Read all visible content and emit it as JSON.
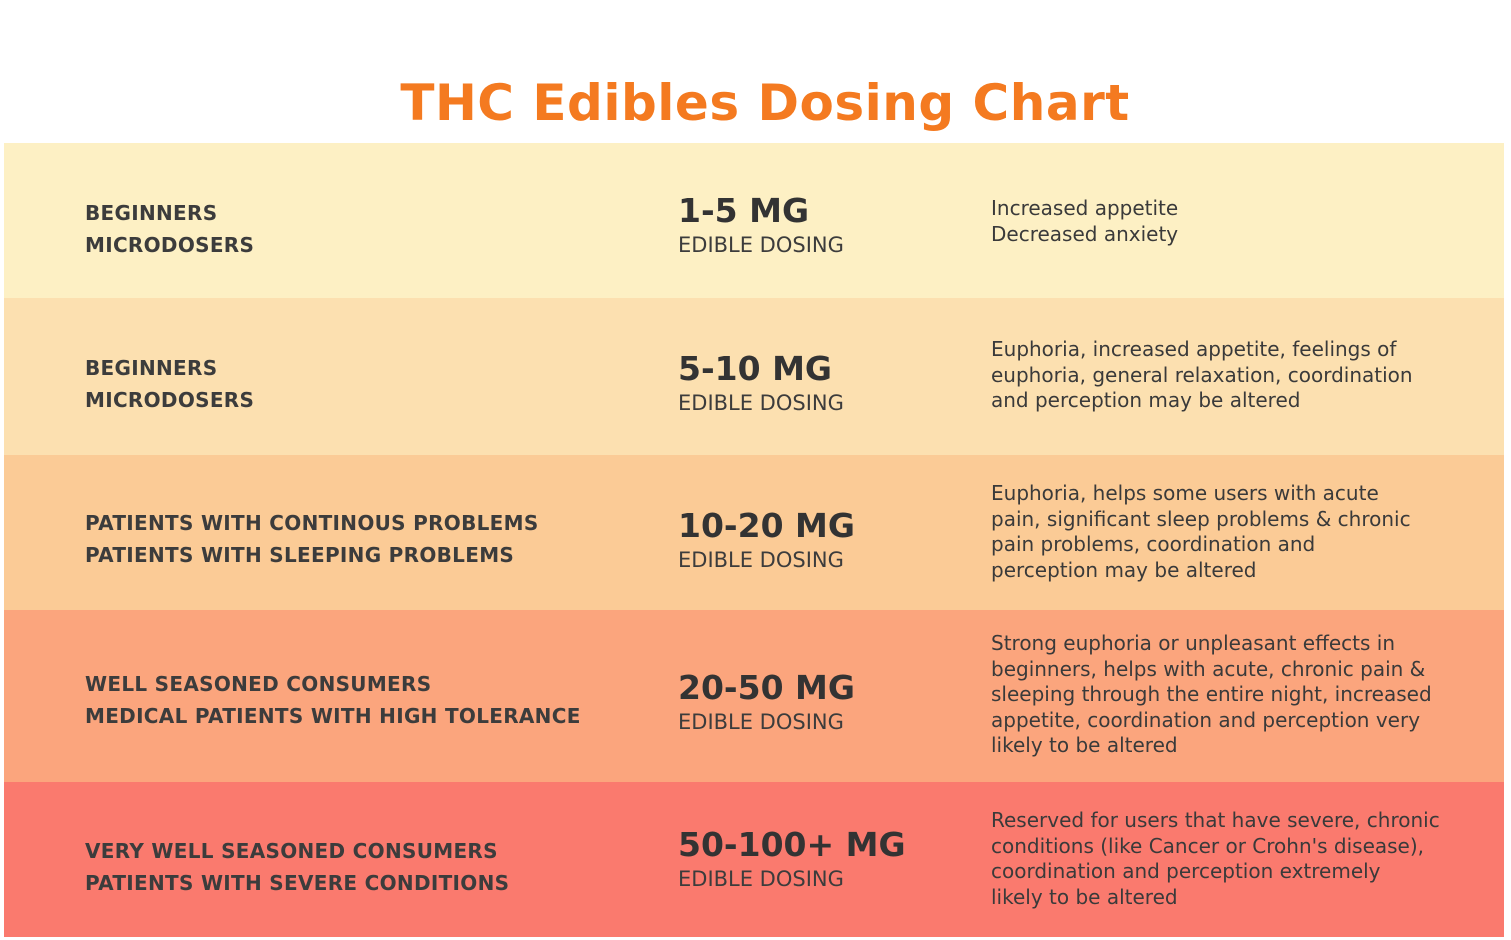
{
  "title": "THC Edibles Dosing Chart",
  "colors": {
    "title": "#f47a20",
    "row_backgrounds": [
      "#fdf0c4",
      "#fce0b0",
      "#fbcb96",
      "#fba57d",
      "#fa7a6e"
    ]
  },
  "rows": [
    {
      "audience": [
        "BEGINNERS",
        "MICRODOSERS"
      ],
      "dose": "1-5 MG",
      "dose_label": "EDIBLE DOSING",
      "effects": [
        "Increased appetite",
        "Decreased anxiety"
      ]
    },
    {
      "audience": [
        "BEGINNERS",
        "MICRODOSERS"
      ],
      "dose": "5-10 MG",
      "dose_label": "EDIBLE DOSING",
      "effects": [
        "Euphoria, increased appetite, feelings of",
        "euphoria, general relaxation, coordination",
        "and perception may be altered"
      ]
    },
    {
      "audience": [
        "PATIENTS WITH CONTINOUS PROBLEMS",
        "PATIENTS WITH SLEEPING PROBLEMS"
      ],
      "dose": "10-20 MG",
      "dose_label": "EDIBLE DOSING",
      "effects": [
        "Euphoria, helps some users with acute",
        "pain, significant sleep problems & chronic",
        "pain problems, coordination and",
        "perception may be altered"
      ]
    },
    {
      "audience": [
        "WELL SEASONED CONSUMERS",
        "MEDICAL PATIENTS WITH HIGH TOLERANCE"
      ],
      "dose": "20-50 MG",
      "dose_label": "EDIBLE DOSING",
      "effects": [
        "Strong euphoria or unpleasant effects in",
        "beginners, helps with acute, chronic pain &",
        "sleeping through the entire night, increased",
        "appetite, coordination and perception very",
        "likely to be altered"
      ]
    },
    {
      "audience": [
        "VERY WELL SEASONED CONSUMERS",
        "PATIENTS WITH SEVERE CONDITIONS"
      ],
      "dose": "50-100+ MG",
      "dose_label": "EDIBLE DOSING",
      "effects": [
        "Reserved for users that have severe, chronic",
        "conditions (like Cancer or Crohn's disease),",
        "coordination and perception extremely",
        "likely to be altered"
      ]
    }
  ]
}
